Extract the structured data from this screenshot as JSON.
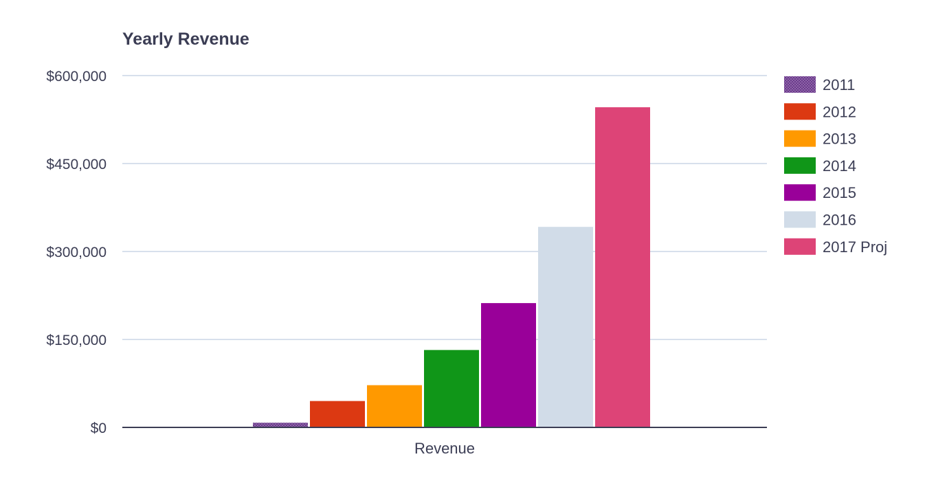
{
  "chart_data": {
    "type": "bar",
    "title": "Yearly Revenue",
    "xlabel": "",
    "ylabel": "",
    "categories": [
      "Revenue"
    ],
    "series": [
      {
        "name": "2011",
        "values": [
          8000
        ],
        "color": "#6b3a8c",
        "pattern": "dotted"
      },
      {
        "name": "2012",
        "values": [
          45000
        ],
        "color": "#dc3912"
      },
      {
        "name": "2013",
        "values": [
          72000
        ],
        "color": "#ff9900"
      },
      {
        "name": "2014",
        "values": [
          132000
        ],
        "color": "#109618"
      },
      {
        "name": "2015",
        "values": [
          212000
        ],
        "color": "#990099"
      },
      {
        "name": "2016",
        "values": [
          342000
        ],
        "color": "#d1dce8"
      },
      {
        "name": "2017 Proj",
        "values": [
          546000
        ],
        "color": "#dd4477"
      }
    ],
    "ylim": [
      0,
      600000
    ],
    "yticks": [
      {
        "value": 0,
        "label": "$0"
      },
      {
        "value": 150000,
        "label": "$150,000"
      },
      {
        "value": 300000,
        "label": "$300,000"
      },
      {
        "value": 450000,
        "label": "$450,000"
      },
      {
        "value": 600000,
        "label": "$600,000"
      }
    ],
    "grid": true,
    "legend": "right"
  }
}
